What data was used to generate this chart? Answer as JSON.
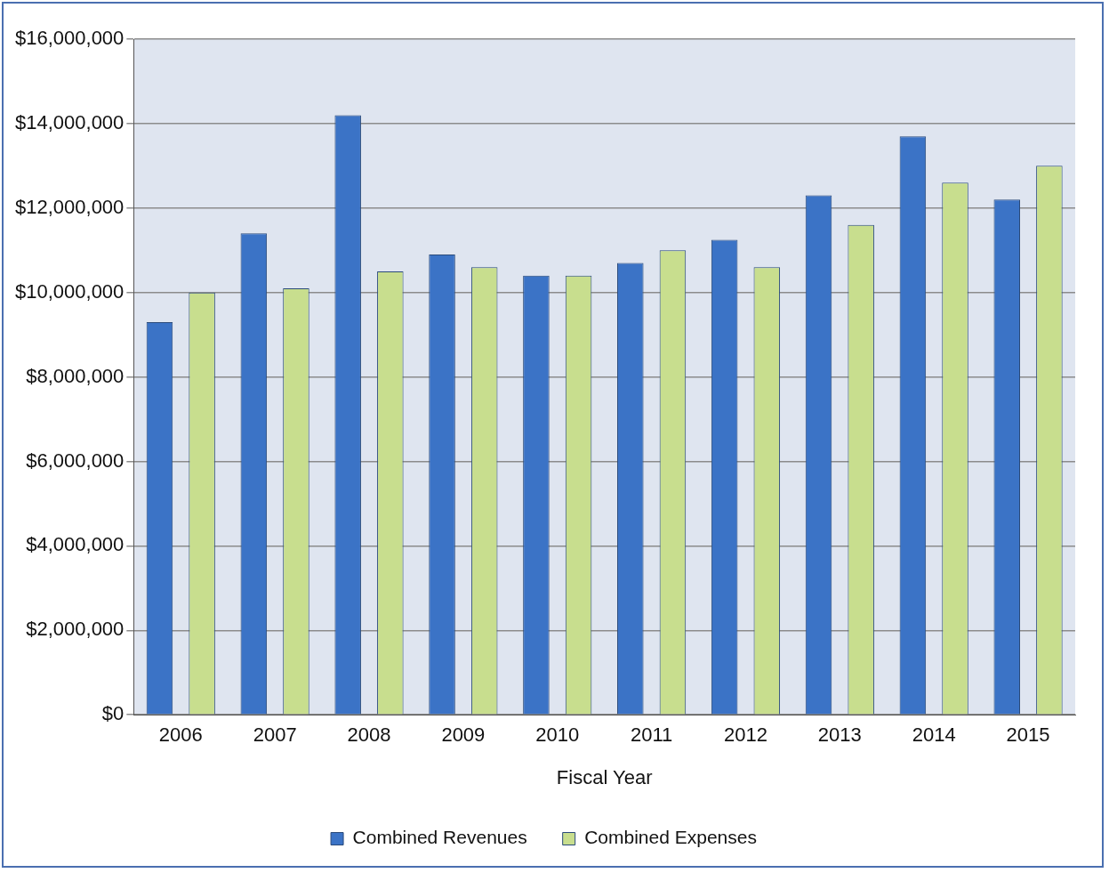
{
  "chart_data": {
    "type": "bar",
    "xlabel": "Fiscal Year",
    "categories": [
      "2006",
      "2007",
      "2008",
      "2009",
      "2010",
      "2011",
      "2012",
      "2013",
      "2014",
      "2015"
    ],
    "series": [
      {
        "name": "Combined Revenues",
        "color": "#3b73c6",
        "values": [
          9300000,
          11400000,
          14200000,
          10900000,
          10400000,
          10700000,
          11250000,
          12300000,
          13700000,
          12200000
        ]
      },
      {
        "name": "Combined Expenses",
        "color": "#c8de8e",
        "values": [
          10000000,
          10100000,
          10500000,
          10600000,
          10400000,
          11000000,
          10600000,
          11600000,
          12600000,
          13000000
        ]
      }
    ],
    "ylim": [
      0,
      16000000
    ],
    "yticks": [
      {
        "value": 0,
        "label": "$0"
      },
      {
        "value": 2000000,
        "label": "$2,000,000"
      },
      {
        "value": 4000000,
        "label": "$4,000,000"
      },
      {
        "value": 6000000,
        "label": "$6,000,000"
      },
      {
        "value": 8000000,
        "label": "$8,000,000"
      },
      {
        "value": 10000000,
        "label": "$10,000,000"
      },
      {
        "value": 12000000,
        "label": "$12,000,000"
      },
      {
        "value": 14000000,
        "label": "$14,000,000"
      },
      {
        "value": 16000000,
        "label": "$16,000,000"
      }
    ],
    "grid": "y",
    "legend": "bottom"
  }
}
